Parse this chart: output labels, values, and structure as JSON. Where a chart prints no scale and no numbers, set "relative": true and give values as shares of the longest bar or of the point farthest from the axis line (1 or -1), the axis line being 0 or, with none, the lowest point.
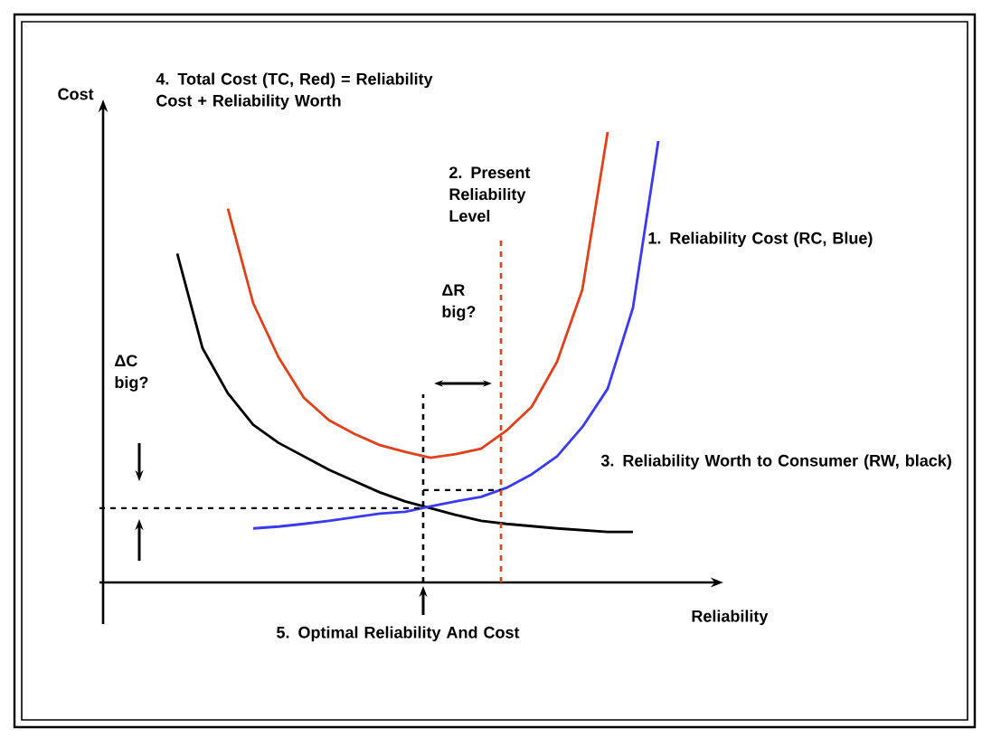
{
  "chart_data": {
    "type": "line",
    "relative": true,
    "xlabel": "Reliability",
    "ylabel": "Cost",
    "categories": [
      null,
      null,
      null,
      null,
      null,
      null,
      null,
      null,
      null,
      null,
      null,
      null,
      null,
      null,
      null,
      null,
      null,
      null,
      null,
      null,
      null
    ],
    "series": [
      {
        "color": "#000000",
        "values": [
          null,
          0.73,
          0.52,
          0.42,
          0.35,
          0.31,
          0.28,
          0.25,
          0.225,
          0.2,
          0.18,
          0.165,
          0.15,
          0.137,
          0.13,
          0.125,
          0.12,
          0.116,
          0.112,
          0.112,
          null
        ]
      },
      {
        "color": "#3a3af0",
        "values": [
          null,
          null,
          null,
          null,
          0.12,
          0.124,
          0.13,
          0.137,
          0.145,
          0.153,
          0.157,
          0.169,
          0.18,
          0.19,
          0.21,
          0.24,
          0.28,
          0.345,
          0.43,
          0.61,
          0.98
        ]
      },
      {
        "color": "#e0401a",
        "values": [
          null,
          null,
          null,
          0.83,
          0.62,
          0.5,
          0.41,
          0.36,
          0.33,
          0.305,
          0.29,
          0.277,
          0.285,
          0.297,
          0.337,
          0.39,
          0.49,
          0.65,
          1.0,
          null,
          null
        ]
      }
    ],
    "ref_lines": [
      {
        "axis": "y",
        "value": 0.165,
        "color": "#000000",
        "line_style": "dashed"
      },
      {
        "axis": "y",
        "value": 0.205,
        "color": "#000000",
        "line_style": "dashed"
      }
    ],
    "annotations": [
      "4. Total Cost (TC, Red) = Reliability Cost + Reliability Worth",
      "2. Present Reliability Level",
      "1. Reliability Cost (RC, Blue)",
      "ΔR big?",
      "ΔC big?",
      "3. Reliability Worth to Consumer (RW, black)",
      "5. Optimal Reliability And Cost"
    ],
    "marker": "none",
    "line_style": "solid"
  }
}
